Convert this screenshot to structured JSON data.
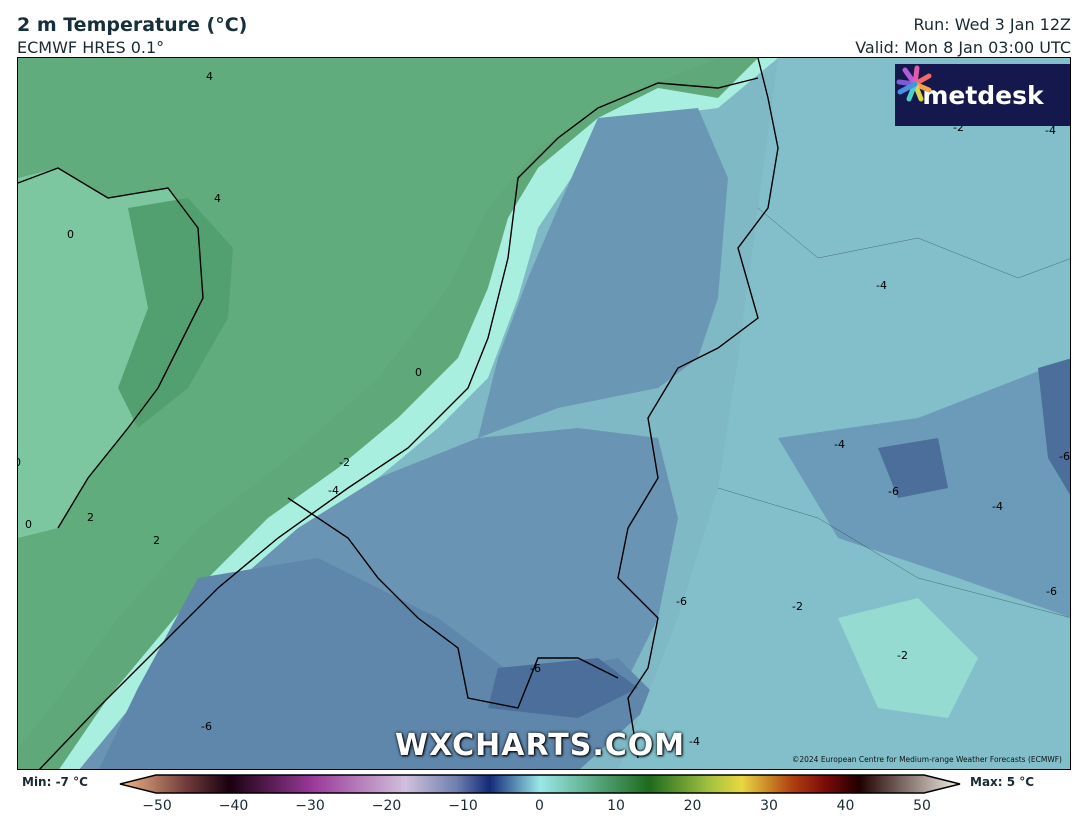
{
  "header": {
    "title": "2 m Temperature (°C)",
    "model": "ECMWF HRES 0.1°",
    "run": "Run: Wed 3 Jan 12Z",
    "valid": "Valid: Mon 8 Jan 03:00 UTC"
  },
  "logo": {
    "text": "metdesk"
  },
  "watermark": "WXCHARTS.COM",
  "copyright": "©2024 European Centre for Medium-range Weather Forecasts (ECMWF)",
  "contour_labels": [
    "4",
    "4",
    "0",
    "0",
    "0",
    "2",
    "2",
    "-2",
    "-4",
    "0",
    "-4",
    "-4",
    "-2",
    "-4",
    "-6",
    "-4",
    "-6",
    "-6",
    "-6",
    "-2",
    "-2",
    "-6",
    "-6",
    "-4"
  ],
  "colorbar": {
    "min_label": "Min: -7 °C",
    "max_label": "Max: 5 °C",
    "ticks": [
      "−50",
      "−40",
      "−30",
      "−20",
      "−10",
      "0",
      "10",
      "20",
      "30",
      "40",
      "50"
    ],
    "range": [
      -50,
      50
    ],
    "unit": "°C"
  },
  "colors": {
    "sea_warm": "#5fa87a",
    "land_cold": "#6a98b4",
    "coast_cool": "#a8efe0",
    "logo_bg": "#15184d"
  }
}
